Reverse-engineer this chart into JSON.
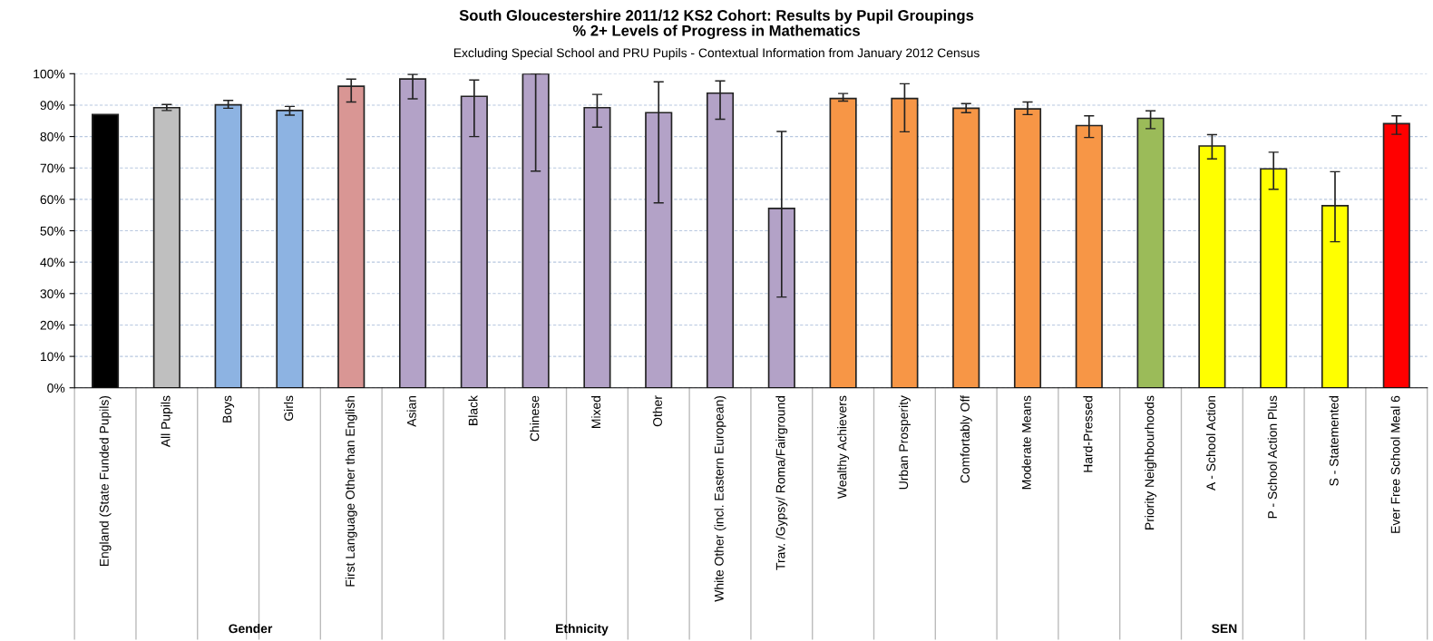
{
  "chart_data": {
    "type": "bar",
    "title": "South Gloucestershire 2011/12 KS2 Cohort: Results by Pupil Groupings\n% 2+ Levels of Progress in Mathematics",
    "subtitle": "Excluding Special School and PRU Pupils - Contextual Information from January 2012 Census",
    "categories": [
      "England (State Funded Pupils)",
      "All Pupils",
      "Boys",
      "Girls",
      "First Language Other than English",
      "Asian",
      "Black",
      "Chinese",
      "Mixed",
      "Other",
      "White Other (incl. Eastern European)",
      "Trav. /Gypsy/ Roma/Fairground",
      "Wealthy Achievers",
      "Urban Prosperity",
      "Comfortably Off",
      "Moderate Means",
      "Hard-Pressed",
      "Priority Neighbourhoods",
      "A - School Action",
      "P - School Action Plus",
      "S - Statemented",
      "Ever Free School Meal 6"
    ],
    "values": [
      87,
      89.2,
      90.1,
      88.3,
      96,
      98.3,
      92.8,
      100,
      89.2,
      87.6,
      93.8,
      57.1,
      92.1,
      92.1,
      89,
      88.8,
      83.5,
      85.8,
      77,
      69.7,
      58,
      84.1
    ],
    "errors": [
      null,
      [
        88.3,
        90.2
      ],
      [
        89,
        91.5
      ],
      [
        86.8,
        89.6
      ],
      [
        91,
        98.3
      ],
      [
        92,
        99.8
      ],
      [
        80,
        98
      ],
      [
        69,
        100
      ],
      [
        83,
        93.4
      ],
      [
        58.9,
        97.4
      ],
      [
        85.5,
        97.7
      ],
      [
        28.9,
        81.6
      ],
      [
        91.3,
        93.7
      ],
      [
        81.5,
        96.8
      ],
      [
        87.6,
        90.5
      ],
      [
        87,
        91
      ],
      [
        79.7,
        86.6
      ],
      [
        82.5,
        88.2
      ],
      [
        72.9,
        80.6
      ],
      [
        63.2,
        75
      ],
      [
        46.5,
        68.8
      ],
      [
        80.7,
        86.6
      ]
    ],
    "colors": [
      "#000000",
      "#bfbfbf",
      "#8db3e2",
      "#8db3e2",
      "#d99694",
      "#b3a2c7",
      "#b3a2c7",
      "#b3a2c7",
      "#b3a2c7",
      "#b3a2c7",
      "#b3a2c7",
      "#b3a2c7",
      "#f79646",
      "#f79646",
      "#f79646",
      "#f79646",
      "#f79646",
      "#9bbb59",
      "#ffff00",
      "#ffff00",
      "#ffff00",
      "#ff0000"
    ],
    "ylim": [
      0,
      100
    ],
    "yticks": [
      {
        "value": 0,
        "label": "0%"
      },
      {
        "value": 10,
        "label": "10%"
      },
      {
        "value": 20,
        "label": "20%"
      },
      {
        "value": 30,
        "label": "30%"
      },
      {
        "value": 40,
        "label": "40%"
      },
      {
        "value": 50,
        "label": "50%"
      },
      {
        "value": 60,
        "label": "60%"
      },
      {
        "value": 70,
        "label": "70%"
      },
      {
        "value": 80,
        "label": "80%"
      },
      {
        "value": 90,
        "label": "90%"
      },
      {
        "value": 100,
        "label": "100%"
      }
    ],
    "grid": "y",
    "annotations": [
      "Gender",
      "Ethnicity",
      "SEN"
    ]
  }
}
